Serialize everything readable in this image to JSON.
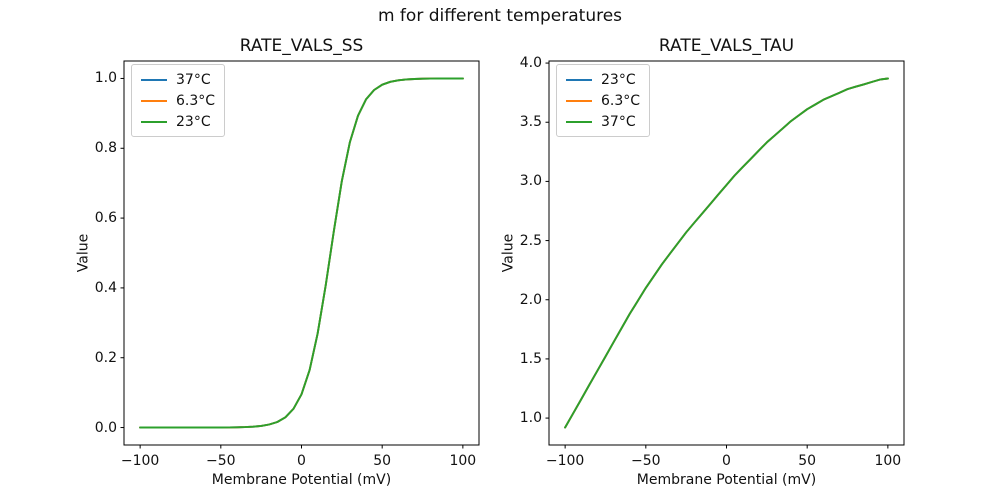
{
  "figure": {
    "suptitle": "m for different temperatures",
    "background": "#ffffff",
    "text_color": "#111111",
    "spine_color": "#000000"
  },
  "chart_data": [
    {
      "type": "line",
      "title": "RATE_VALS_SS",
      "xlabel": "Membrane Potential (mV)",
      "ylabel": "Value",
      "grid": false,
      "legend_position": "upper left",
      "xlim": [
        -110,
        110
      ],
      "ylim": [
        -0.05,
        1.05
      ],
      "xticks": [
        -100,
        -50,
        0,
        50,
        100
      ],
      "xtick_labels": [
        "−100",
        "−50",
        "0",
        "50",
        "100"
      ],
      "yticks": [
        0.0,
        0.2,
        0.4,
        0.6,
        0.8,
        1.0
      ],
      "ytick_labels": [
        "0.0",
        "0.2",
        "0.4",
        "0.6",
        "0.8",
        "1.0"
      ],
      "x": [
        -100,
        -95,
        -90,
        -85,
        -80,
        -75,
        -70,
        -65,
        -60,
        -55,
        -50,
        -45,
        -40,
        -35,
        -30,
        -25,
        -20,
        -15,
        -10,
        -5,
        0,
        5,
        10,
        15,
        20,
        25,
        30,
        35,
        40,
        45,
        50,
        55,
        60,
        65,
        70,
        75,
        80,
        85,
        90,
        95,
        100
      ],
      "series": [
        {
          "name": "37°C",
          "color": "#1f77b4",
          "values": [
            0,
            0,
            0,
            0,
            0,
            0,
            0,
            0,
            0.0001,
            0.0001,
            0.0002,
            0.0004,
            0.0007,
            0.0013,
            0.0025,
            0.0046,
            0.0086,
            0.016,
            0.0293,
            0.0534,
            0.0953,
            0.1645,
            0.2689,
            0.4073,
            0.562,
            0.7058,
            0.8176,
            0.8933,
            0.9399,
            0.9668,
            0.982,
            0.9903,
            0.9948,
            0.9972,
            0.9985,
            0.9992,
            0.9996,
            0.9998,
            0.9999,
            0.9999,
            1.0
          ]
        },
        {
          "name": "6.3°C",
          "color": "#ff7f0e",
          "values": [
            0,
            0,
            0,
            0,
            0,
            0,
            0,
            0,
            0.0001,
            0.0001,
            0.0002,
            0.0004,
            0.0007,
            0.0013,
            0.0025,
            0.0046,
            0.0086,
            0.016,
            0.0293,
            0.0534,
            0.0953,
            0.1645,
            0.2689,
            0.4073,
            0.562,
            0.7058,
            0.8176,
            0.8933,
            0.9399,
            0.9668,
            0.982,
            0.9903,
            0.9948,
            0.9972,
            0.9985,
            0.9992,
            0.9996,
            0.9998,
            0.9999,
            0.9999,
            1.0
          ]
        },
        {
          "name": "23°C",
          "color": "#2ca02c",
          "values": [
            0,
            0,
            0,
            0,
            0,
            0,
            0,
            0,
            0.0001,
            0.0001,
            0.0002,
            0.0004,
            0.0007,
            0.0013,
            0.0025,
            0.0046,
            0.0086,
            0.016,
            0.0293,
            0.0534,
            0.0953,
            0.1645,
            0.2689,
            0.4073,
            0.562,
            0.7058,
            0.8176,
            0.8933,
            0.9399,
            0.9668,
            0.982,
            0.9903,
            0.9948,
            0.9972,
            0.9985,
            0.9992,
            0.9996,
            0.9998,
            0.9999,
            0.9999,
            1.0
          ]
        }
      ],
      "note": "All three temperature curves are identical and overlap; only the last-drawn green curve is visible."
    },
    {
      "type": "line",
      "title": "RATE_VALS_TAU",
      "xlabel": "Membrane Potential (mV)",
      "ylabel": "Value",
      "grid": false,
      "legend_position": "upper left",
      "xlim": [
        -110,
        110
      ],
      "ylim": [
        0.7725,
        4.0175
      ],
      "xticks": [
        -100,
        -50,
        0,
        50,
        100
      ],
      "xtick_labels": [
        "−100",
        "−50",
        "0",
        "50",
        "100"
      ],
      "yticks": [
        1.0,
        1.5,
        2.0,
        2.5,
        3.0,
        3.5,
        4.0
      ],
      "ytick_labels": [
        "1.0",
        "1.5",
        "2.0",
        "2.5",
        "3.0",
        "3.5",
        "4.0"
      ],
      "x": [
        -100,
        -95,
        -90,
        -85,
        -80,
        -75,
        -70,
        -65,
        -60,
        -55,
        -50,
        -45,
        -40,
        -35,
        -30,
        -25,
        -20,
        -15,
        -10,
        -5,
        0,
        5,
        10,
        15,
        20,
        25,
        30,
        35,
        40,
        45,
        50,
        55,
        60,
        65,
        70,
        75,
        80,
        85,
        90,
        95,
        100
      ],
      "series": [
        {
          "name": "23°C",
          "color": "#1f77b4",
          "values": [
            0.92,
            1.04,
            1.16,
            1.28,
            1.4,
            1.52,
            1.64,
            1.76,
            1.88,
            1.99,
            2.1,
            2.2,
            2.3,
            2.39,
            2.48,
            2.57,
            2.65,
            2.73,
            2.81,
            2.89,
            2.97,
            3.05,
            3.12,
            3.19,
            3.26,
            3.33,
            3.39,
            3.45,
            3.51,
            3.56,
            3.61,
            3.65,
            3.69,
            3.72,
            3.75,
            3.78,
            3.8,
            3.82,
            3.84,
            3.86,
            3.87
          ]
        },
        {
          "name": "6.3°C",
          "color": "#ff7f0e",
          "values": [
            0.92,
            1.04,
            1.16,
            1.28,
            1.4,
            1.52,
            1.64,
            1.76,
            1.88,
            1.99,
            2.1,
            2.2,
            2.3,
            2.39,
            2.48,
            2.57,
            2.65,
            2.73,
            2.81,
            2.89,
            2.97,
            3.05,
            3.12,
            3.19,
            3.26,
            3.33,
            3.39,
            3.45,
            3.51,
            3.56,
            3.61,
            3.65,
            3.69,
            3.72,
            3.75,
            3.78,
            3.8,
            3.82,
            3.84,
            3.86,
            3.87
          ]
        },
        {
          "name": "37°C",
          "color": "#2ca02c",
          "values": [
            0.92,
            1.04,
            1.16,
            1.28,
            1.4,
            1.52,
            1.64,
            1.76,
            1.88,
            1.99,
            2.1,
            2.2,
            2.3,
            2.39,
            2.48,
            2.57,
            2.65,
            2.73,
            2.81,
            2.89,
            2.97,
            3.05,
            3.12,
            3.19,
            3.26,
            3.33,
            3.39,
            3.45,
            3.51,
            3.56,
            3.61,
            3.65,
            3.69,
            3.72,
            3.75,
            3.78,
            3.8,
            3.82,
            3.84,
            3.86,
            3.87
          ]
        }
      ],
      "note": "All three temperature curves are identical and overlap; only the last-drawn green curve is visible."
    }
  ]
}
